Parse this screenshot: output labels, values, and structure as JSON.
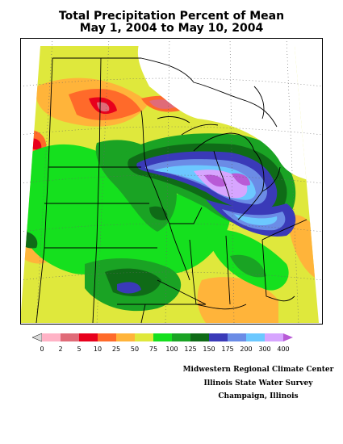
{
  "title": {
    "line1": "Total Precipitation Percent of Mean",
    "line2": "May 1, 2004 to May 10, 2004"
  },
  "legend": {
    "levels": [
      "0",
      "2",
      "5",
      "10",
      "25",
      "50",
      "75",
      "100",
      "125",
      "150",
      "175",
      "200",
      "300",
      "400"
    ],
    "colors": [
      "#d9d9d9",
      "#ffb3c6",
      "#e06b78",
      "#e8001c",
      "#ff6a2a",
      "#ffb43a",
      "#dfe83c",
      "#15e01e",
      "#1aa324",
      "#0f6b17",
      "#3a3ab8",
      "#6b8ce6",
      "#6cc8ff",
      "#d7a5ff",
      "#b85bd6"
    ]
  },
  "credits": {
    "line1": "Midwestern Regional Climate Center",
    "line2": "Illinois State Water Survey",
    "line3": "Champaign, Illinois"
  },
  "map": {
    "region": "Midwest United States",
    "boundaries_color": "#000000",
    "graticule_style": "dotted"
  }
}
